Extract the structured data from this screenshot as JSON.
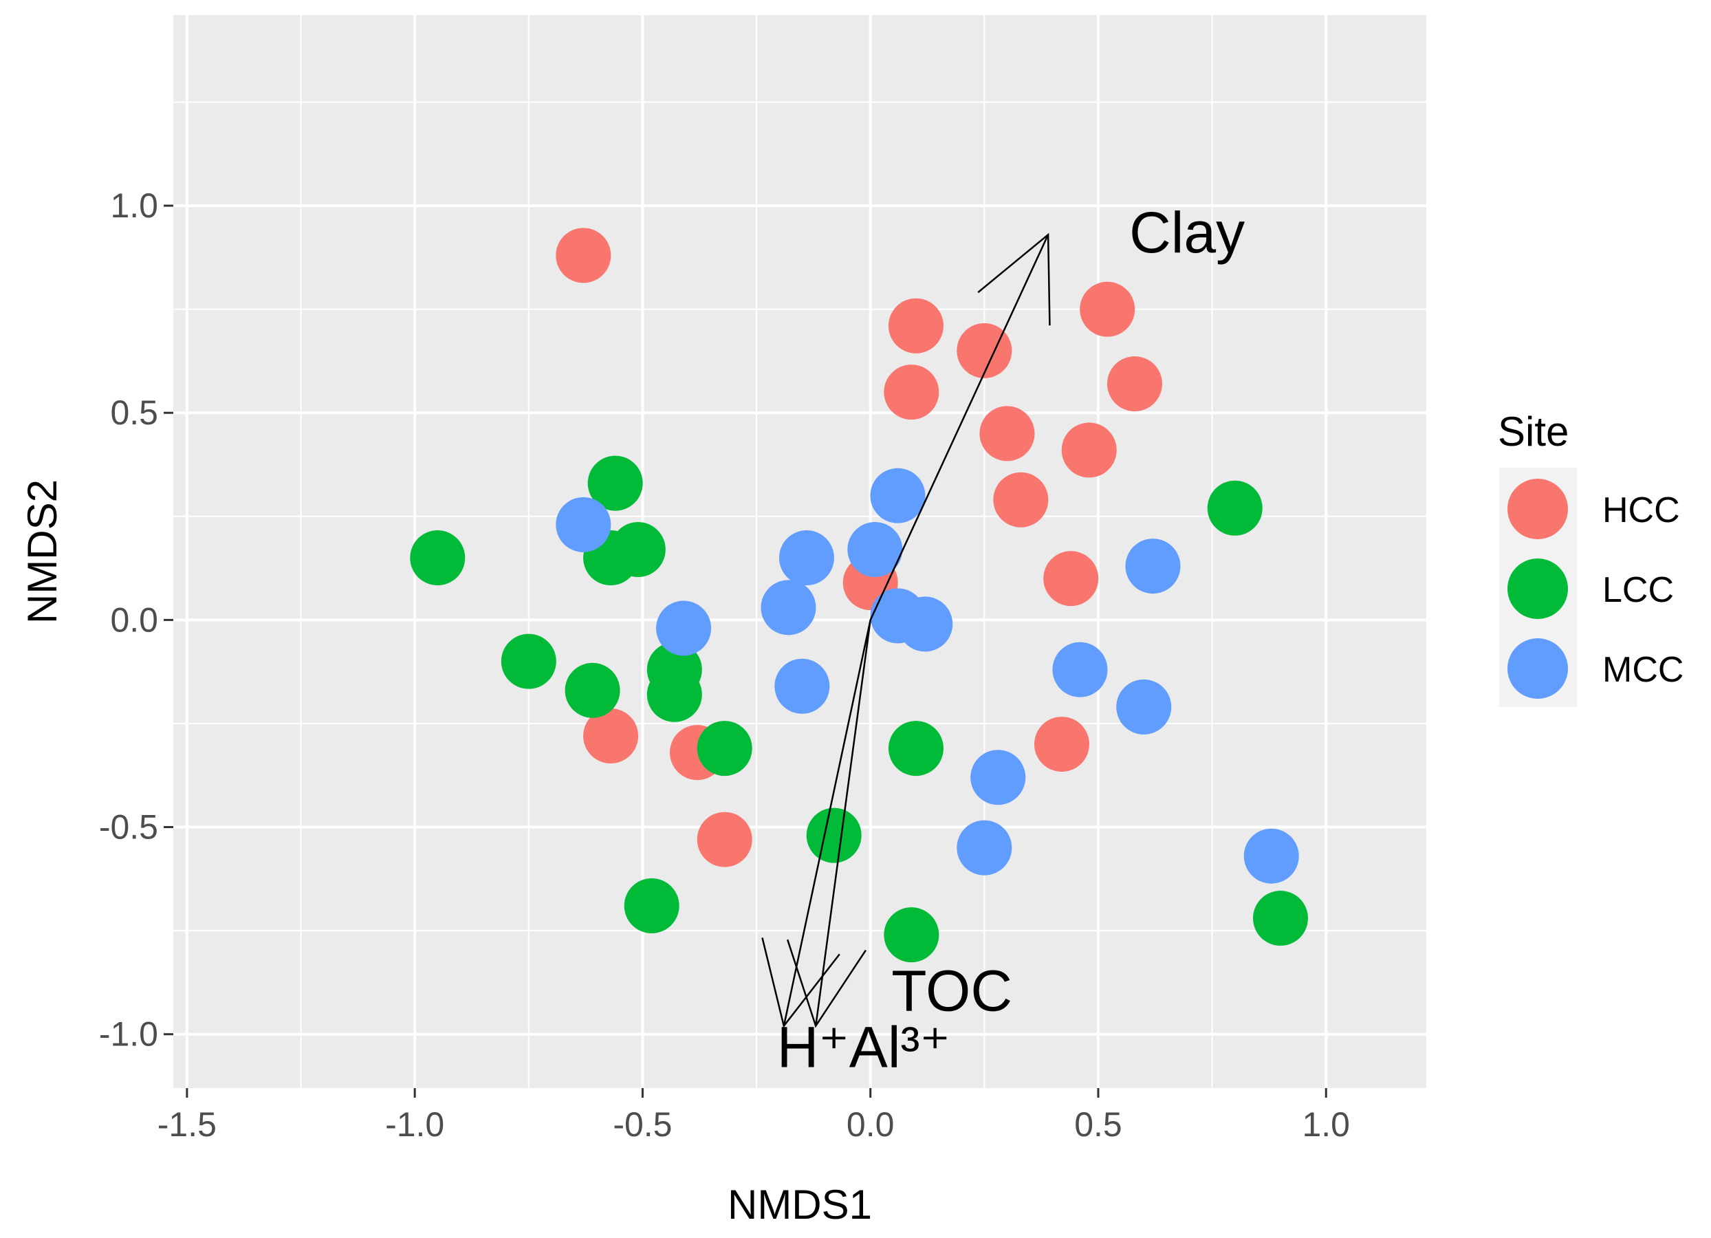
{
  "chart_data": {
    "type": "scatter",
    "title": "",
    "xlabel": "NMDS1",
    "ylabel": "NMDS2",
    "xlim": [
      -1.53,
      1.22
    ],
    "ylim": [
      -1.13,
      1.46
    ],
    "grid": true,
    "x_ticks": [
      {
        "value": -1.5,
        "label": "-1.5"
      },
      {
        "value": -1.0,
        "label": "-1.0"
      },
      {
        "value": -0.5,
        "label": "-0.5"
      },
      {
        "value": 0.0,
        "label": "0.0"
      },
      {
        "value": 0.5,
        "label": "0.5"
      },
      {
        "value": 1.0,
        "label": "1.0"
      }
    ],
    "y_ticks": [
      {
        "value": -1.0,
        "label": "-1.0"
      },
      {
        "value": -0.5,
        "label": "-0.5"
      },
      {
        "value": 0.0,
        "label": "0.0"
      },
      {
        "value": 0.5,
        "label": "0.5"
      },
      {
        "value": 1.0,
        "label": "1.0"
      }
    ],
    "legend": {
      "title": "Site",
      "placement": "right",
      "entries": [
        {
          "name": "HCC",
          "color": "#F8766D"
        },
        {
          "name": "LCC",
          "color": "#00BA38"
        },
        {
          "name": "MCC",
          "color": "#619CFF"
        }
      ]
    },
    "series": [
      {
        "name": "HCC",
        "color": "#F8766D",
        "points": [
          [
            -0.63,
            0.88
          ],
          [
            0.1,
            0.71
          ],
          [
            0.25,
            0.65
          ],
          [
            0.52,
            0.75
          ],
          [
            0.58,
            0.57
          ],
          [
            0.09,
            0.55
          ],
          [
            0.3,
            0.45
          ],
          [
            0.48,
            0.41
          ],
          [
            0.33,
            0.29
          ],
          [
            0.44,
            0.1
          ],
          [
            0.0,
            0.09
          ],
          [
            -0.57,
            -0.28
          ],
          [
            -0.38,
            -0.32
          ],
          [
            -0.32,
            -0.53
          ],
          [
            0.42,
            -0.3
          ]
        ]
      },
      {
        "name": "LCC",
        "color": "#00BA38",
        "points": [
          [
            -0.56,
            0.33
          ],
          [
            -0.95,
            0.15
          ],
          [
            -0.57,
            0.15
          ],
          [
            -0.51,
            0.17
          ],
          [
            -0.75,
            -0.1
          ],
          [
            -0.61,
            -0.17
          ],
          [
            -0.43,
            -0.12
          ],
          [
            -0.43,
            -0.18
          ],
          [
            -0.32,
            -0.31
          ],
          [
            0.1,
            -0.31
          ],
          [
            -0.08,
            -0.52
          ],
          [
            -0.48,
            -0.69
          ],
          [
            0.09,
            -0.76
          ],
          [
            0.8,
            0.27
          ],
          [
            0.9,
            -0.72
          ]
        ]
      },
      {
        "name": "MCC",
        "color": "#619CFF",
        "points": [
          [
            -0.63,
            0.23
          ],
          [
            0.06,
            0.3
          ],
          [
            -0.14,
            0.15
          ],
          [
            0.01,
            0.17
          ],
          [
            -0.18,
            0.03
          ],
          [
            -0.41,
            -0.02
          ],
          [
            0.06,
            0.01
          ],
          [
            0.12,
            -0.01
          ],
          [
            -0.15,
            -0.16
          ],
          [
            0.46,
            -0.12
          ],
          [
            0.6,
            -0.21
          ],
          [
            0.62,
            0.13
          ],
          [
            0.28,
            -0.38
          ],
          [
            0.25,
            -0.55
          ],
          [
            0.88,
            -0.57
          ]
        ]
      }
    ],
    "vectors": [
      {
        "name": "Clay",
        "label": "Clay",
        "x": 0.39,
        "y": 0.93
      },
      {
        "name": "TOC",
        "label": "TOC",
        "x": -0.12,
        "y": -0.98
      },
      {
        "name": "H+Al3+",
        "label": "H⁺Al³⁺",
        "x": -0.19,
        "y": -0.98
      }
    ]
  }
}
